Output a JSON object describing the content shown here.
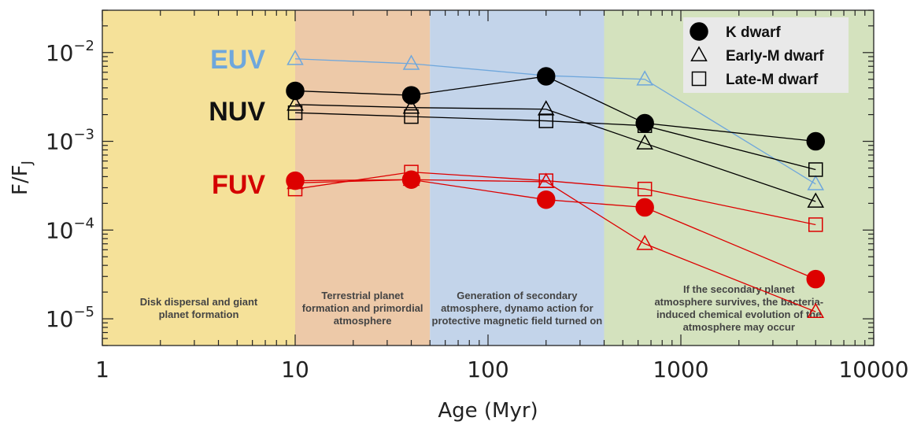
{
  "chart_data": {
    "type": "line",
    "title": "",
    "xlabel": "Age (Myr)",
    "ylabel": "F/F",
    "ylabel_subscript": "J",
    "xscale": "log",
    "yscale": "log",
    "xlim": [
      1,
      10000
    ],
    "ylim": [
      5e-06,
      0.03
    ],
    "x_ticks": [
      {
        "value": 1,
        "label": "1"
      },
      {
        "value": 10,
        "label": "10"
      },
      {
        "value": 100,
        "label": "100"
      },
      {
        "value": 1000,
        "label": "1000"
      },
      {
        "value": 10000,
        "label": "10000"
      }
    ],
    "y_ticks": [
      {
        "value": 0.01,
        "base": "10",
        "exp": "−2"
      },
      {
        "value": 0.001,
        "base": "10",
        "exp": "−3"
      },
      {
        "value": 0.0001,
        "base": "10",
        "exp": "−4"
      },
      {
        "value": 1e-05,
        "base": "10",
        "exp": "−5"
      }
    ],
    "bands": [
      {
        "x0": 1,
        "x1": 10,
        "color": "#f5e199",
        "text": [
          "Disk dispersal and giant",
          "planet formation"
        ]
      },
      {
        "x0": 10,
        "x1": 50,
        "color": "#edc9a8",
        "text": [
          "Terrestrial planet",
          "formation and primordial",
          "atmosphere"
        ]
      },
      {
        "x0": 50,
        "x1": 400,
        "color": "#c3d4ea",
        "text": [
          "Generation of  secondary",
          "atmosphere, dynamo action for",
          "protective magnetic  field turned on"
        ]
      },
      {
        "x0": 400,
        "x1": 10000,
        "color": "#d4e2be",
        "text": [
          "If the secondary planet",
          "atmosphere survives, the bacteria-",
          "induced chemical evolution of the",
          "atmosphere may occur"
        ]
      }
    ],
    "band_labels": [
      {
        "text": "EUV",
        "color": "#6fa7dc",
        "x": 7,
        "y": 0.0085
      },
      {
        "text": "NUV",
        "color": "#111111",
        "x": 7,
        "y": 0.0022
      },
      {
        "text": "FUV",
        "color": "#d40000",
        "x": 7,
        "y": 0.00033
      }
    ],
    "series": [
      {
        "band": "EUV",
        "marker": "triangle",
        "color": "#6fa7dc",
        "x": [
          10,
          40,
          200,
          650,
          5000
        ],
        "y": [
          0.0085,
          0.0075,
          0.0055,
          0.005,
          0.00033
        ]
      },
      {
        "band": "NUV",
        "marker": "circle",
        "color": "#000000",
        "x": [
          10,
          40,
          200,
          650,
          5000
        ],
        "y": [
          0.0037,
          0.0033,
          0.0054,
          0.0016,
          0.001
        ]
      },
      {
        "band": "NUV",
        "marker": "triangle",
        "color": "#000000",
        "x": [
          10,
          40,
          200,
          650,
          5000
        ],
        "y": [
          0.0026,
          0.0024,
          0.0023,
          0.00095,
          0.00021
        ]
      },
      {
        "band": "NUV",
        "marker": "square",
        "color": "#000000",
        "x": [
          10,
          40,
          200,
          650,
          5000
        ],
        "y": [
          0.0021,
          0.0019,
          0.0017,
          0.0015,
          0.00048
        ]
      },
      {
        "band": "FUV",
        "marker": "circle",
        "color": "#dd0000",
        "x": [
          10,
          40,
          200,
          650,
          5000
        ],
        "y": [
          0.00036,
          0.00037,
          0.00022,
          0.00018,
          2.8e-05
        ]
      },
      {
        "band": "FUV",
        "marker": "triangle",
        "color": "#dd0000",
        "x": [
          10,
          40,
          200,
          650,
          5000
        ],
        "y": [
          0.00034,
          0.00037,
          0.00035,
          7e-05,
          1.2e-05
        ]
      },
      {
        "band": "FUV",
        "marker": "square",
        "color": "#dd0000",
        "x": [
          10,
          40,
          200,
          650,
          5000
        ],
        "y": [
          0.00029,
          0.00045,
          0.00036,
          0.00029,
          0.000115
        ]
      }
    ],
    "legend": {
      "placement": "top-right",
      "background": "#e9e9e9",
      "entries": [
        {
          "marker": "circle",
          "label": "K dwarf"
        },
        {
          "marker": "triangle",
          "label": "Early-M dwarf"
        },
        {
          "marker": "square",
          "label": "Late-M dwarf"
        }
      ]
    }
  }
}
